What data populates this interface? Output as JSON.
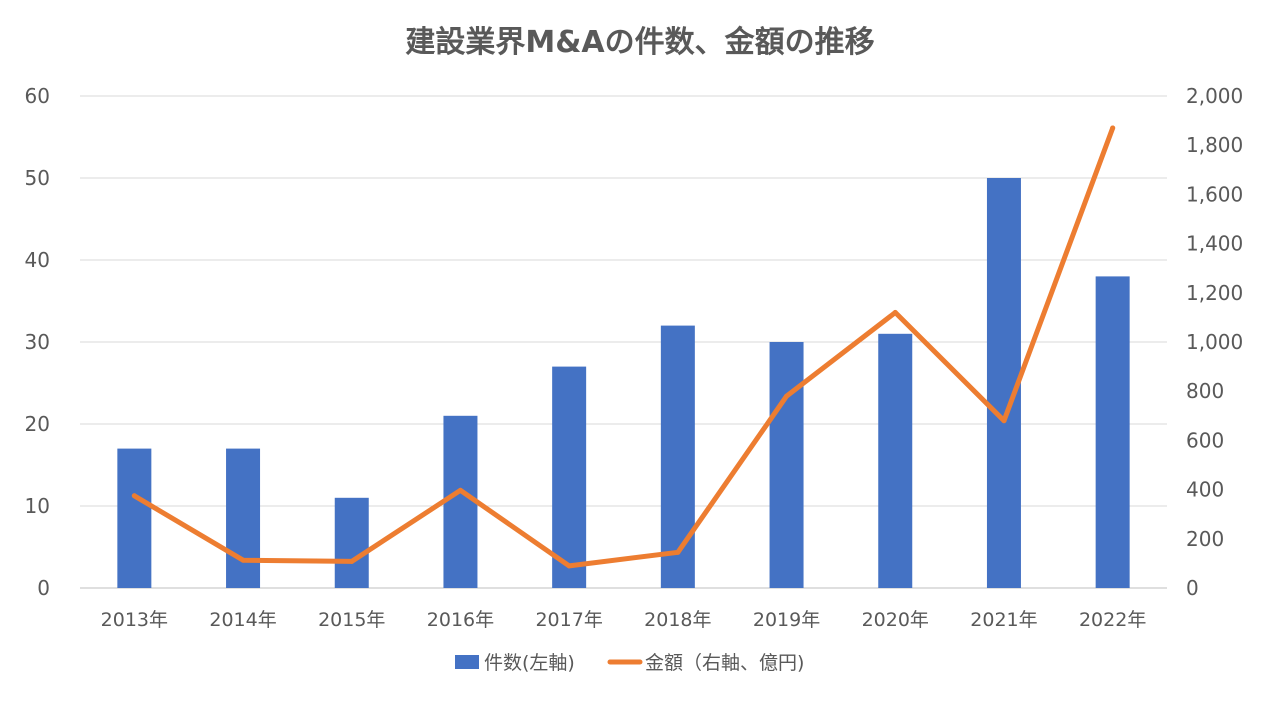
{
  "chart_data": {
    "type": "bar+line",
    "title": "建設業界M&Aの件数、金額の推移",
    "categories": [
      "2013年",
      "2014年",
      "2015年",
      "2016年",
      "2017年",
      "2018年",
      "2019年",
      "2020年",
      "2021年",
      "2022年"
    ],
    "series": [
      {
        "name": "件数(左軸)",
        "type": "bar",
        "axis": "left",
        "color": "#4472C4",
        "values": [
          17,
          17,
          11,
          21,
          27,
          32,
          30,
          31,
          50,
          38
        ]
      },
      {
        "name": "金額（右軸、億円)",
        "type": "line",
        "axis": "right",
        "color": "#ED7D31",
        "values": [
          375,
          113,
          108,
          397,
          90,
          145,
          780,
          1120,
          680,
          1870
        ]
      }
    ],
    "left_axis": {
      "ylim": [
        0,
        60
      ],
      "ticks": [
        0,
        10,
        20,
        30,
        40,
        50,
        60
      ],
      "tick_labels": [
        "0",
        "10",
        "20",
        "30",
        "40",
        "50",
        "60"
      ]
    },
    "right_axis": {
      "ylim": [
        0,
        2000
      ],
      "ticks": [
        0,
        200,
        400,
        600,
        800,
        1000,
        1200,
        1400,
        1600,
        1800,
        2000
      ],
      "tick_labels": [
        "0",
        "200",
        "400",
        "600",
        "800",
        "1,000",
        "1,200",
        "1,400",
        "1,600",
        "1,800",
        "2,000"
      ]
    },
    "grid": true,
    "legend": "bottom",
    "legend_labels": [
      "件数(左軸)",
      "金額（右軸、億円)"
    ]
  }
}
